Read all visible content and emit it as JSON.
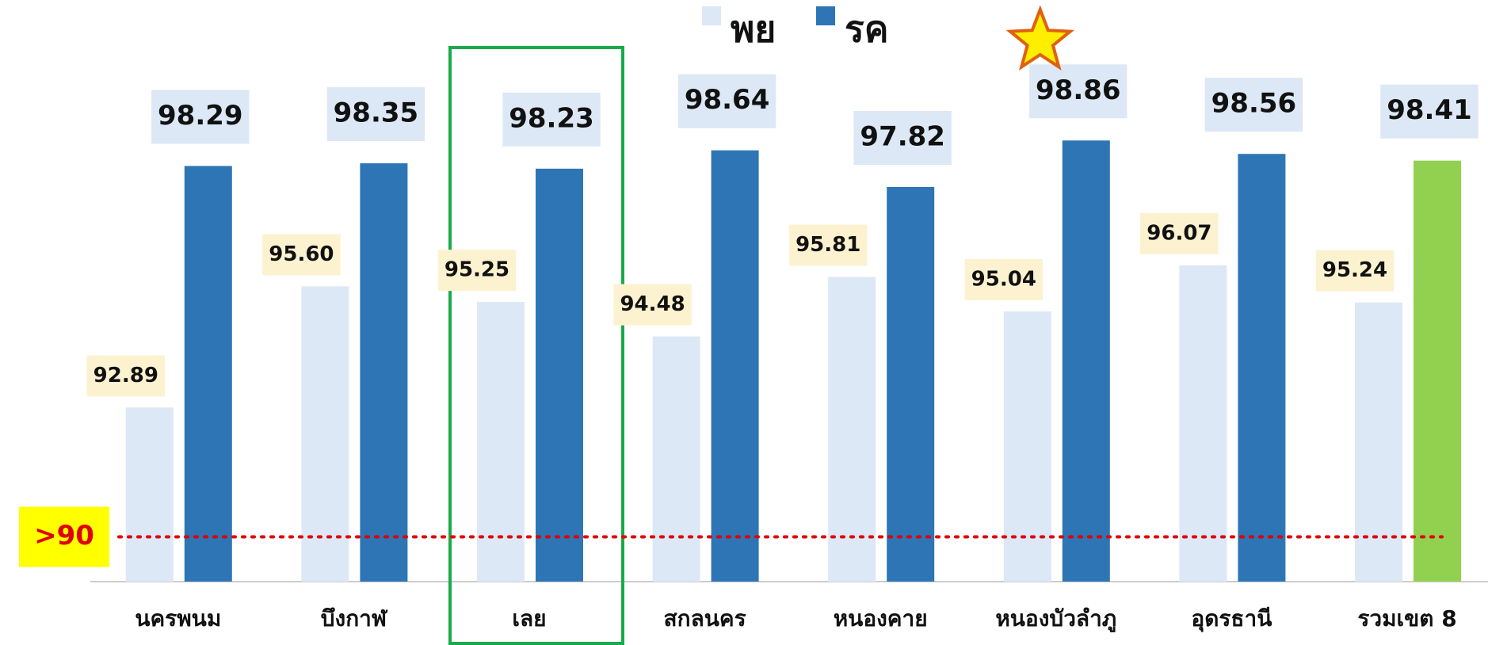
{
  "chart_data": {
    "type": "bar",
    "categories": [
      "นครพนม",
      "บึงกาฬ",
      "เลย",
      "สกลนคร",
      "หนองคาย",
      "หนองบัวลำภู",
      "อุดรธานี",
      "รวมเขต 8"
    ],
    "series": [
      {
        "name": "พย",
        "color": "#dce8f5",
        "label_box": "#fdf2d0",
        "values": [
          92.89,
          95.6,
          95.25,
          94.48,
          95.81,
          95.04,
          96.07,
          95.24
        ],
        "value_labels": [
          "92.89",
          "95.60",
          "95.25",
          "94.48",
          "95.81",
          "95.04",
          "96.07",
          "95.24"
        ]
      },
      {
        "name": "รค",
        "color": "#2e75b6",
        "label_box": "#dce8f5",
        "colors": [
          "#2e75b6",
          "#2e75b6",
          "#2e75b6",
          "#2e75b6",
          "#2e75b6",
          "#2e75b6",
          "#2e75b6",
          "#92d050"
        ],
        "values": [
          98.29,
          98.35,
          98.23,
          98.64,
          97.82,
          98.86,
          98.56,
          98.41
        ],
        "value_labels": [
          "98.29",
          "98.35",
          "98.23",
          "98.64",
          "97.82",
          "98.86",
          "98.56",
          "98.41"
        ]
      }
    ],
    "ylim": [
      89,
      102
    ],
    "reference_line": {
      "value": 90,
      "label": ">90",
      "color": "#e00000"
    },
    "highlight_category": "เลย",
    "starred_category": "หนองบัวลำภู"
  }
}
